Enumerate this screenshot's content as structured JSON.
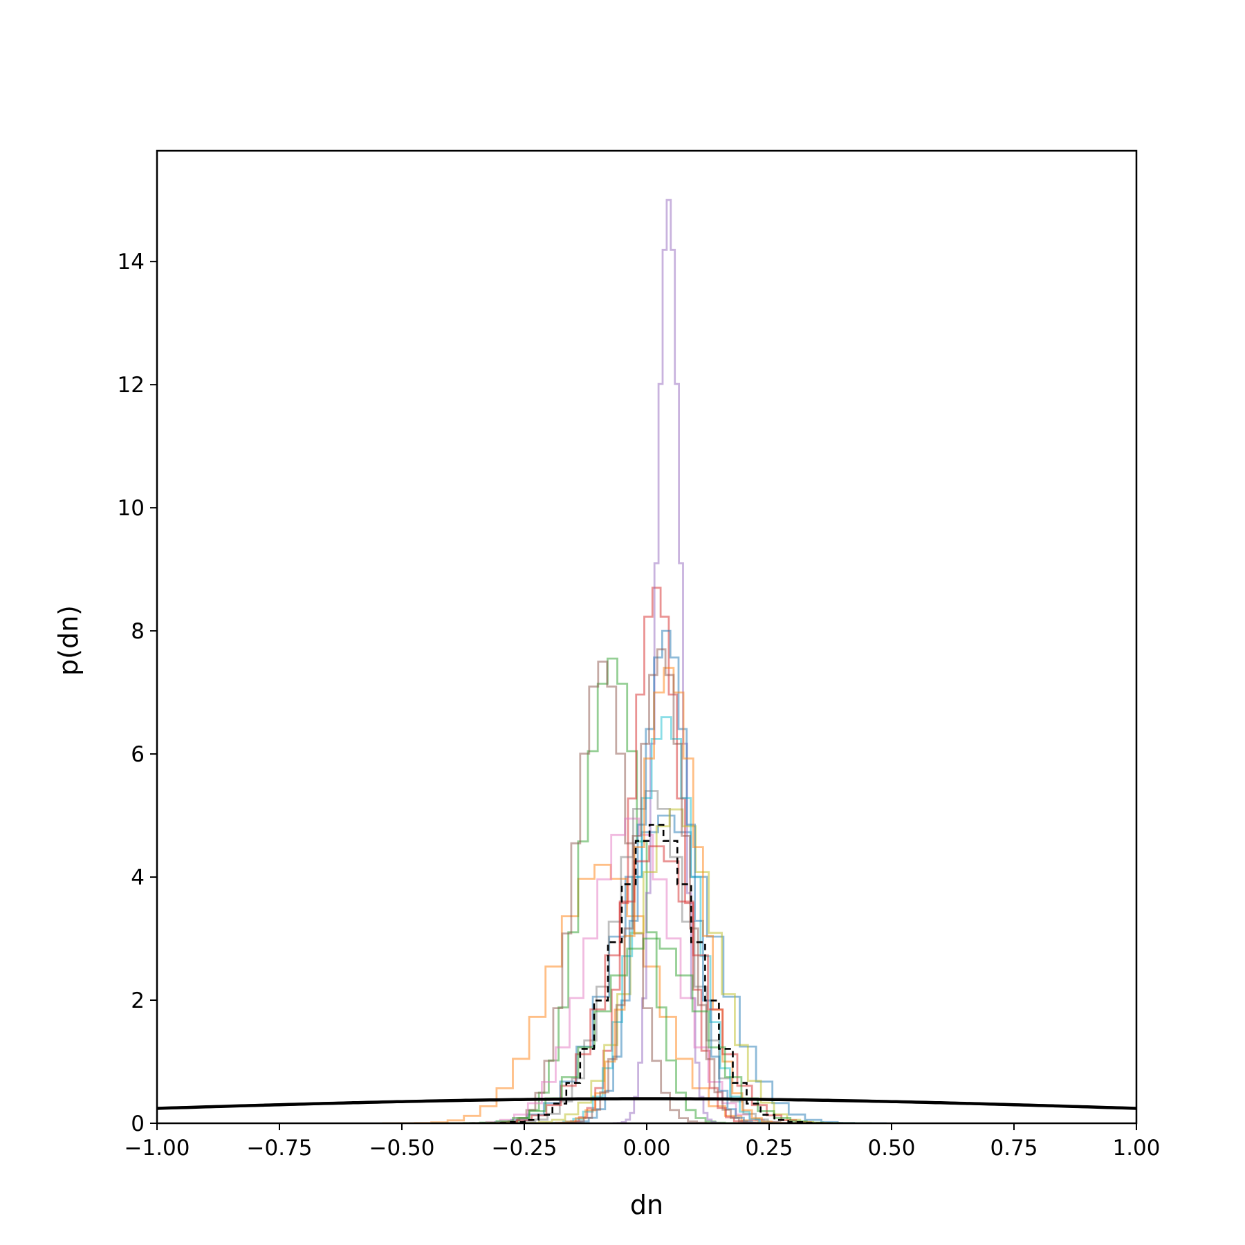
{
  "chart_data": {
    "type": "line",
    "xlabel": "dn",
    "ylabel": "p(dn)",
    "xlim": [
      -1.0,
      1.0
    ],
    "ylim": [
      0,
      15.8
    ],
    "xticks": [
      -1.0,
      -0.75,
      -0.5,
      -0.25,
      0.0,
      0.25,
      0.5,
      0.75,
      1.0
    ],
    "xtick_labels": [
      "−1.00",
      "−0.75",
      "−0.50",
      "−0.25",
      "0.00",
      "0.25",
      "0.50",
      "0.75",
      "1.00"
    ],
    "yticks": [
      0,
      2,
      4,
      6,
      8,
      10,
      12,
      14
    ],
    "ytick_labels": [
      "0",
      "2",
      "4",
      "6",
      "8",
      "10",
      "12",
      "14"
    ],
    "grid": false,
    "colors": {
      "blue": "#1f77b4",
      "orange": "#ff7f0e",
      "green": "#2ca02c",
      "red": "#d62728",
      "purple": "#9467bd",
      "brown": "#8c564b",
      "pink": "#e377c2",
      "gray": "#7f7f7f",
      "olive": "#bcbd22",
      "cyan": "#17becf",
      "combined": "#000000",
      "prior": "#000000"
    },
    "series": [
      {
        "color": "blue",
        "style": "step",
        "mean": 0.04,
        "sd": 0.1,
        "peak": 5.0
      },
      {
        "color": "orange",
        "style": "step",
        "mean": -0.09,
        "sd": 0.1,
        "peak": 4.2
      },
      {
        "color": "green",
        "style": "step",
        "mean": -0.07,
        "sd": 0.06,
        "peak": 7.55
      },
      {
        "color": "red",
        "style": "step",
        "mean": 0.02,
        "sd": 0.05,
        "peak": 8.7
      },
      {
        "color": "purple",
        "style": "step",
        "mean": 0.045,
        "sd": 0.025,
        "peak": 15.0
      },
      {
        "color": "brown",
        "style": "step",
        "mean": -0.09,
        "sd": 0.055,
        "peak": 7.5
      },
      {
        "color": "pink",
        "style": "step",
        "mean": -0.03,
        "sd": 0.085,
        "peak": 4.95
      },
      {
        "color": "gray",
        "style": "step",
        "mean": 0.01,
        "sd": 0.075,
        "peak": 5.4
      },
      {
        "color": "olive",
        "style": "step",
        "mean": 0.06,
        "sd": 0.08,
        "peak": 5.1
      },
      {
        "color": "cyan",
        "style": "step",
        "mean": 0.04,
        "sd": 0.06,
        "peak": 6.6
      },
      {
        "color": "blue",
        "style": "step",
        "mean": 0.04,
        "sd": 0.05,
        "peak": 8.0
      },
      {
        "color": "orange",
        "style": "step",
        "mean": 0.045,
        "sd": 0.06,
        "peak": 7.4
      },
      {
        "color": "red",
        "style": "step",
        "mean": 0.02,
        "sd": 0.09,
        "peak": 4.5
      },
      {
        "color": "brown",
        "style": "step",
        "mean": 0.03,
        "sd": 0.05,
        "peak": 7.7
      },
      {
        "color": "green",
        "style": "step",
        "mean": 0.01,
        "sd": 0.1,
        "peak": 3.0
      },
      {
        "color": "combined",
        "style": "dashed-step",
        "mean": 0.02,
        "sd": 0.085,
        "peak": 4.85
      },
      {
        "color": "prior",
        "style": "line",
        "mean": 0.0,
        "sd": 1.0,
        "peak": 0.399
      }
    ]
  }
}
